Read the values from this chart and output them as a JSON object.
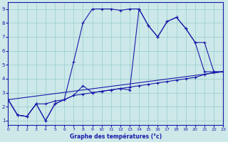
{
  "xlabel": "Graphe des températures (°c)",
  "bg_color": "#cce8e8",
  "grid_color": "#99cccc",
  "line_color": "#1a1aaa",
  "xlim": [
    0,
    23
  ],
  "ylim": [
    0.7,
    9.5
  ],
  "xticks": [
    0,
    1,
    2,
    3,
    4,
    5,
    6,
    7,
    8,
    9,
    10,
    11,
    12,
    13,
    14,
    15,
    16,
    17,
    18,
    19,
    20,
    21,
    22,
    23
  ],
  "yticks": [
    1,
    2,
    3,
    4,
    5,
    6,
    7,
    8,
    9
  ],
  "curve1_x": [
    0,
    1,
    2,
    3,
    4,
    5,
    6,
    7,
    8,
    9,
    10,
    11,
    12,
    13,
    14,
    15,
    16,
    17,
    18,
    19,
    20,
    21,
    22,
    23
  ],
  "curve1_y": [
    2.5,
    1.4,
    1.3,
    2.2,
    1.0,
    2.2,
    2.5,
    5.2,
    8.0,
    9.0,
    9.0,
    9.0,
    8.9,
    9.0,
    9.0,
    7.8,
    7.0,
    8.1,
    8.4,
    7.6,
    6.6,
    4.5,
    4.5,
    4.5
  ],
  "curve2_x": [
    0,
    1,
    2,
    3,
    4,
    5,
    6,
    7,
    8,
    9,
    10,
    11,
    12,
    13,
    14,
    15,
    16,
    17,
    18,
    19,
    20,
    21,
    22,
    23
  ],
  "curve2_y": [
    2.5,
    1.4,
    1.3,
    2.2,
    1.0,
    2.2,
    2.5,
    2.8,
    3.5,
    3.0,
    3.1,
    3.2,
    3.3,
    3.2,
    9.0,
    7.8,
    7.0,
    8.1,
    8.4,
    7.6,
    6.6,
    6.6,
    4.5,
    4.5
  ],
  "curve3_x": [
    0,
    1,
    2,
    3,
    4,
    5,
    6,
    7,
    8,
    9,
    10,
    11,
    12,
    13,
    14,
    15,
    16,
    17,
    18,
    19,
    20,
    21,
    22,
    23
  ],
  "curve3_y": [
    2.5,
    1.4,
    1.3,
    2.2,
    2.2,
    2.4,
    2.5,
    2.8,
    2.9,
    3.0,
    3.1,
    3.2,
    3.3,
    3.4,
    3.5,
    3.6,
    3.7,
    3.8,
    3.9,
    4.0,
    4.1,
    4.3,
    4.45,
    4.5
  ],
  "curve4_x": [
    0,
    23
  ],
  "curve4_y": [
    2.5,
    4.5
  ]
}
